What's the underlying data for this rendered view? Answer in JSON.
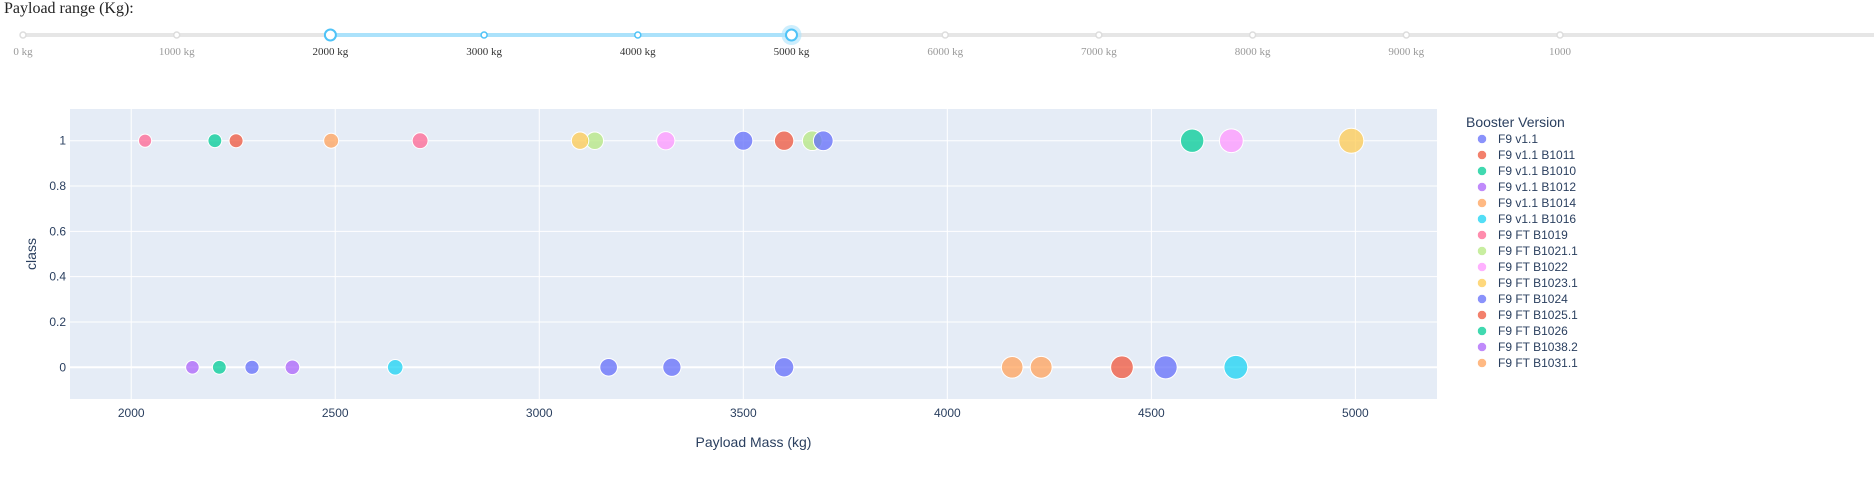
{
  "slider": {
    "title": "Payload range (Kg):",
    "min": 0,
    "max": 10000,
    "step": 1000,
    "value": [
      2000,
      5000
    ],
    "marks": [
      "0 kg",
      "1000 kg",
      "2000 kg",
      "3000 kg",
      "4000 kg",
      "5000 kg",
      "6000 kg",
      "7000 kg",
      "8000 kg",
      "9000 kg",
      "1000"
    ],
    "colors": {
      "track": "#e6e6e6",
      "active": "#abe2fb",
      "handle": "#4fc3f7",
      "active_mark": "#333333",
      "inactive_mark": "#999999"
    }
  },
  "chart_data": {
    "type": "scatter",
    "title": "",
    "xlabel": "Payload Mass (kg)",
    "ylabel": "class",
    "xlim": [
      1850,
      5200
    ],
    "ylim": [
      -0.14,
      1.14
    ],
    "xticks": [
      2000,
      2500,
      3000,
      3500,
      4000,
      4500,
      5000
    ],
    "yticks": [
      0,
      0.2,
      0.4,
      0.6,
      0.8,
      1
    ],
    "grid": true,
    "legend_title": "Booster Version",
    "legend_position": "right",
    "series": [
      {
        "name": "F9 v1.1",
        "color": "#636efa",
        "points": [
          [
            3170,
            0
          ],
          [
            3325,
            0
          ],
          [
            3500,
            1
          ]
        ]
      },
      {
        "name": "F9 v1.1 B1011",
        "color": "#EF553B",
        "points": [
          [
            4428,
            0
          ]
        ]
      },
      {
        "name": "F9 v1.1 B1010",
        "color": "#00cc96",
        "points": [
          [
            2216,
            0
          ]
        ]
      },
      {
        "name": "F9 v1.1 B1012",
        "color": "#ab63fa",
        "points": [
          [
            2395,
            0
          ]
        ]
      },
      {
        "name": "F9 v1.1 B1014",
        "color": "#FFA15A",
        "points": [
          [
            4159,
            0
          ]
        ]
      },
      {
        "name": "F9 v1.1 B1016",
        "color": "#19d3f3",
        "points": [
          [
            4707,
            0
          ]
        ]
      },
      {
        "name": "F9 FT B1019",
        "color": "#FF6692",
        "points": [
          [
            2034,
            1
          ]
        ]
      },
      {
        "name": "F9 FT B1021.1",
        "color": "#B6E880",
        "points": [
          [
            3136,
            1
          ]
        ]
      },
      {
        "name": "F9 FT B1022",
        "color": "#FF97FF",
        "points": [
          [
            4696,
            1
          ]
        ]
      },
      {
        "name": "F9 FT B1023.1",
        "color": "#FECB52",
        "points": [
          [
            3100,
            1
          ]
        ]
      },
      {
        "name": "F9 FT B1024",
        "color": "#636efa",
        "points": [
          [
            3600,
            0
          ]
        ]
      },
      {
        "name": "F9 FT B1025.1",
        "color": "#EF553B",
        "points": [
          [
            2257,
            1
          ]
        ]
      },
      {
        "name": "F9 FT B1026",
        "color": "#00cc96",
        "points": [
          [
            4600,
            1
          ]
        ]
      },
      {
        "name": "F9 FT  B1038.2",
        "color": "#ab63fa",
        "points": [
          [
            2150,
            0
          ]
        ]
      },
      {
        "name": "F9 FT B1031.1",
        "color": "#FFA15A",
        "points": [
          [
            2490,
            1
          ]
        ]
      }
    ],
    "extra_points": [
      {
        "color": "#19d3f3",
        "x": 2647,
        "y": 0
      },
      {
        "color": "#FF6692",
        "x": 2708,
        "y": 1
      },
      {
        "color": "#FF97FF",
        "x": 3310,
        "y": 1
      },
      {
        "color": "#EF553B",
        "x": 3600,
        "y": 1
      },
      {
        "color": "#B6E880",
        "x": 3669,
        "y": 1
      },
      {
        "color": "#636efa",
        "x": 3696,
        "y": 1
      },
      {
        "color": "#FFA15A",
        "x": 4230,
        "y": 0
      },
      {
        "color": "#636efa",
        "x": 4535,
        "y": 0
      },
      {
        "color": "#FECB52",
        "x": 4990,
        "y": 1
      },
      {
        "color": "#636efa",
        "x": 2296,
        "y": 0
      },
      {
        "color": "#00cc96",
        "x": 2205,
        "y": 1
      }
    ],
    "colors": {
      "plot_bg": "#e5ecf6",
      "grid": "#ffffff",
      "text": "#2a3f5f"
    }
  }
}
